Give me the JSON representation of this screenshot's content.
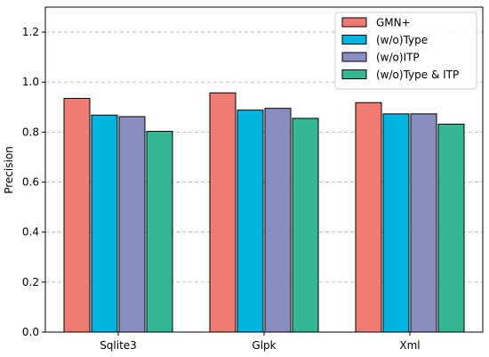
{
  "chart_data": {
    "type": "bar",
    "categories": [
      "Sqlite3",
      "Glpk",
      "Xml"
    ],
    "series": [
      {
        "name": "GMN+",
        "values": [
          0.935,
          0.957,
          0.918
        ],
        "color": "#f07b72"
      },
      {
        "name": "(w/o)Type",
        "values": [
          0.868,
          0.888,
          0.873
        ],
        "color": "#00b4e1"
      },
      {
        "name": "(w/o)ITP",
        "values": [
          0.862,
          0.895,
          0.873
        ],
        "color": "#8a8dbf"
      },
      {
        "name": "(w/o)Type & ITP",
        "values": [
          0.803,
          0.855,
          0.832
        ],
        "color": "#34b792"
      }
    ],
    "title": "",
    "xlabel": "",
    "ylabel": "Precision",
    "ylim": [
      0,
      1.3
    ],
    "yticks": [
      0.0,
      0.2,
      0.4,
      0.6,
      0.8,
      1.0,
      1.2
    ],
    "ytick_labels": [
      "0.0",
      "0.2",
      "0.4",
      "0.6",
      "0.8",
      "1.0",
      "1.2"
    ],
    "grid": "horizontal dashed",
    "legend_position": "top-right"
  }
}
